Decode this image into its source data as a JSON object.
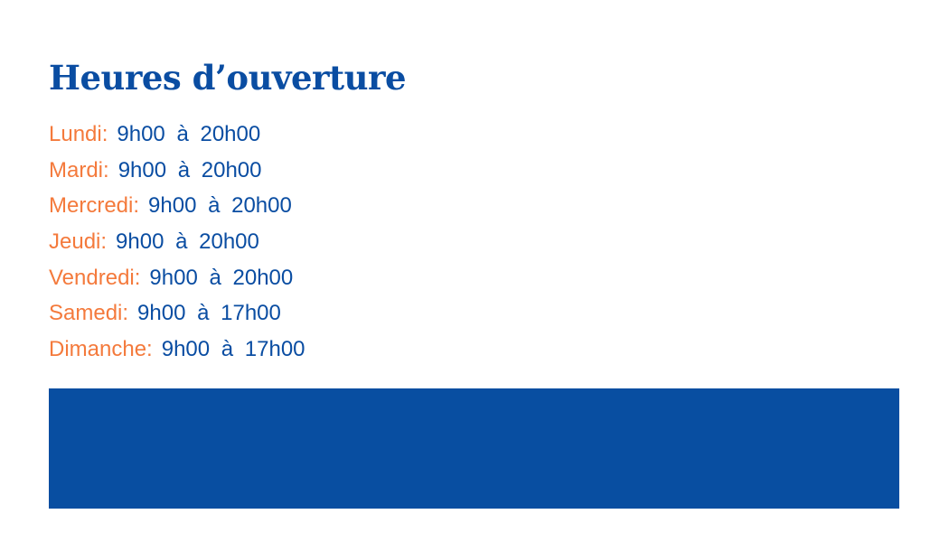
{
  "title": "Heures d’ouverture",
  "hours": [
    {
      "day": "Lundi:",
      "time": "9h00 à 20h00"
    },
    {
      "day": "Mardi:",
      "time": "9h00 à 20h00"
    },
    {
      "day": "Mercredi:",
      "time": "9h00 à 20h00"
    },
    {
      "day": "Jeudi:",
      "time": "9h00 à 20h00"
    },
    {
      "day": "Vendredi:",
      "time": "9h00 à 20h00"
    },
    {
      "day": "Samedi:",
      "time": "9h00 à 17h00"
    },
    {
      "day": "Dimanche:",
      "time": "9h00 à 17h00"
    }
  ],
  "colors": {
    "primary": "#0a4da2",
    "accent": "#f47a3c",
    "banner": "#084ea1"
  }
}
